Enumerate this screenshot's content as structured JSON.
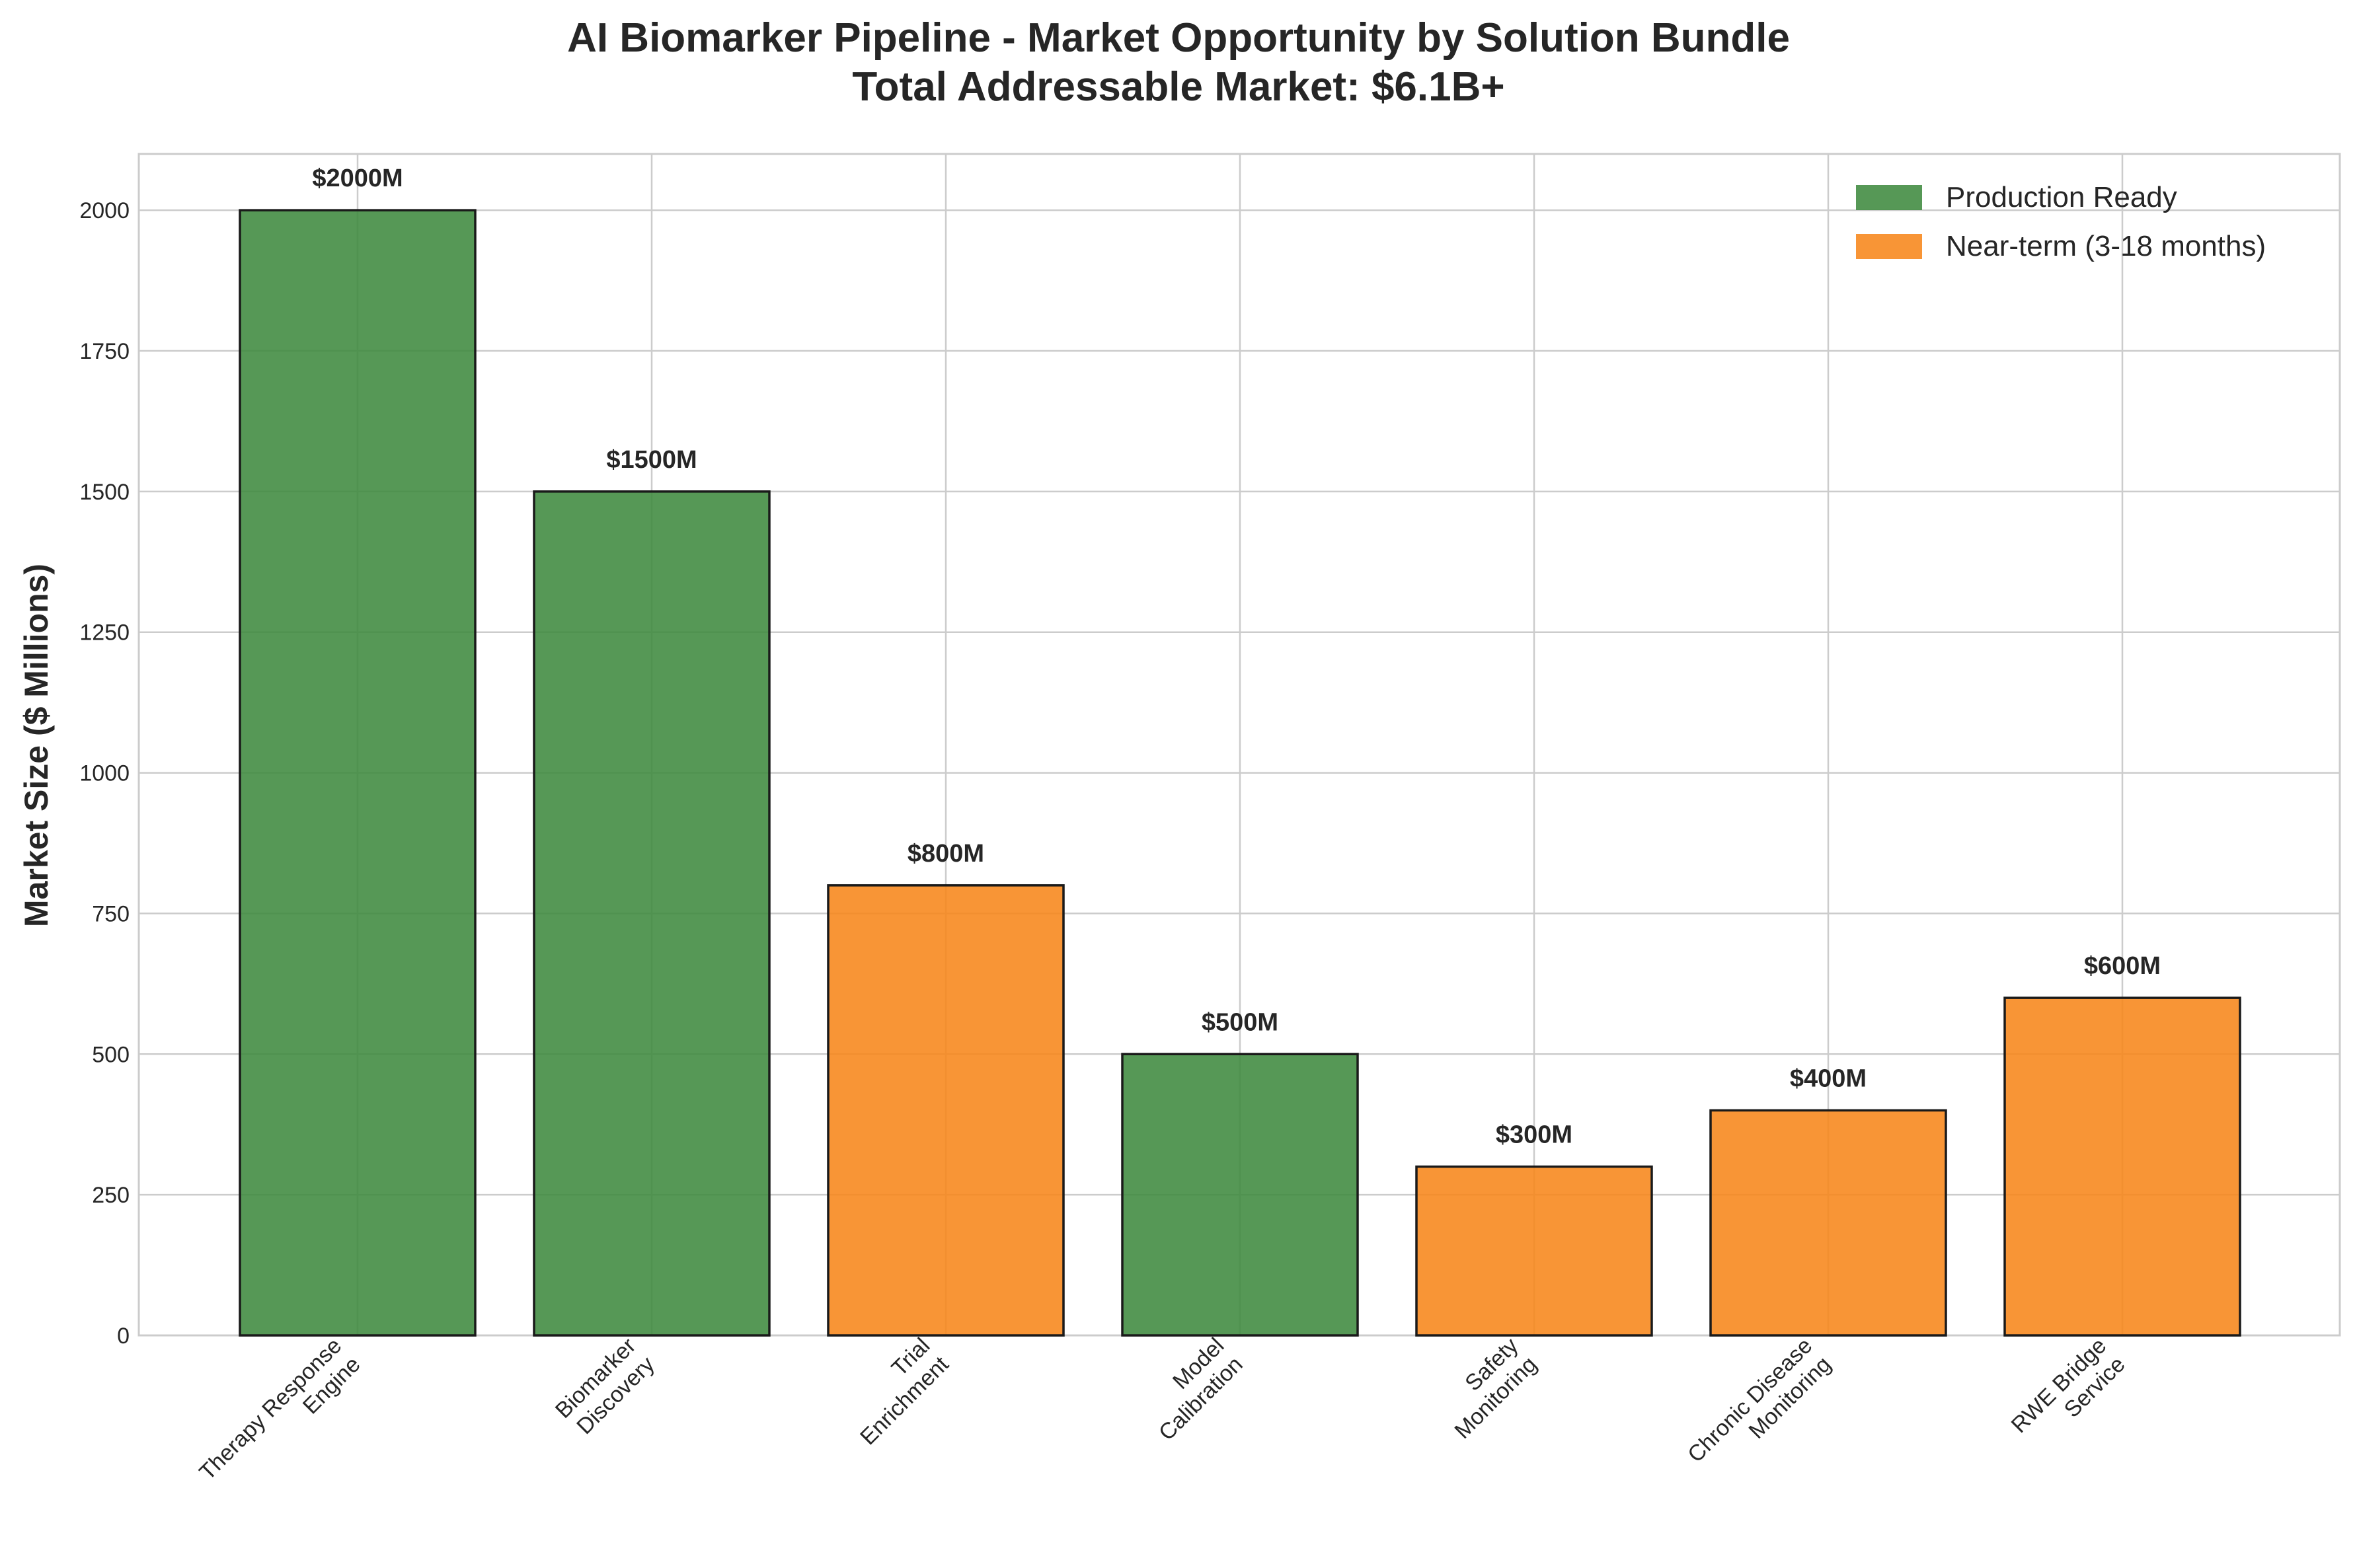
{
  "chart_data": {
    "type": "bar",
    "title": "AI Biomarker Pipeline - Market Opportunity by Solution Bundle",
    "subtitle": "Total Addressable Market: $6.1B+",
    "xlabel": "",
    "ylabel": "Market Size ($ Millions)",
    "ylim": [
      0,
      2100
    ],
    "yticks": [
      "0",
      "250",
      "500",
      "750",
      "1000",
      "1250",
      "1500",
      "1750",
      "2000"
    ],
    "grid": true,
    "legend_position": "top-right",
    "categories": [
      "Therapy Response\nEngine",
      "Biomarker\nDiscovery",
      "Trial\nEnrichment",
      "Model\nCalibration",
      "Safety\nMonitoring",
      "Chronic Disease\nMonitoring",
      "RWE Bridge\nService"
    ],
    "values": [
      2000,
      1500,
      800,
      500,
      300,
      400,
      600
    ],
    "value_labels": [
      "$2000M",
      "$1500M",
      "$800M",
      "$500M",
      "$300M",
      "$400M",
      "$600M"
    ],
    "status": [
      "production",
      "production",
      "nearterm",
      "production",
      "nearterm",
      "nearterm",
      "nearterm"
    ],
    "legend": [
      {
        "key": "production",
        "label": "Production Ready",
        "color": "#3f8a3f"
      },
      {
        "key": "nearterm",
        "label": "Near-term (3-18 months)",
        "color": "#f7861a"
      }
    ]
  }
}
